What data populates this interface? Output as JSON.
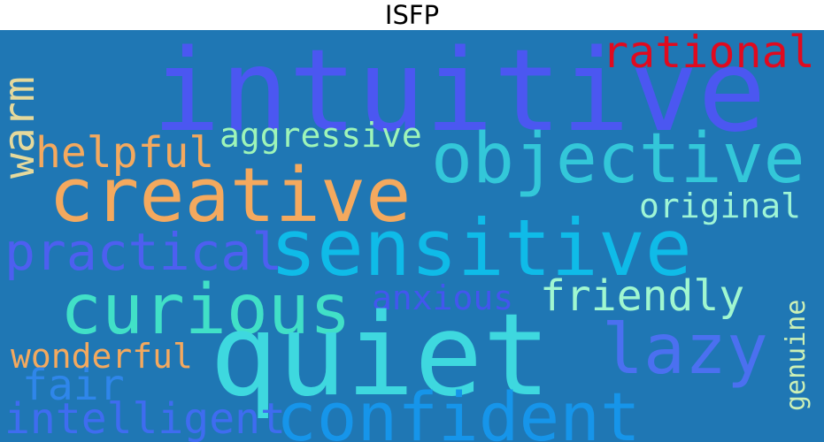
{
  "title": "ISFP",
  "background_color": "#1f77b4",
  "words": [
    {
      "text": "intuitive",
      "color": "#4b57f1"
    },
    {
      "text": "rational",
      "color": "#e00a1f"
    },
    {
      "text": "warm",
      "color": "#e5d99c"
    },
    {
      "text": "helpful",
      "color": "#f4a95e"
    },
    {
      "text": "aggressive",
      "color": "#9ef5b8"
    },
    {
      "text": "objective",
      "color": "#33c7d9"
    },
    {
      "text": "creative",
      "color": "#f4a95e"
    },
    {
      "text": "original",
      "color": "#9ef5d6"
    },
    {
      "text": "practical",
      "color": "#4d5ff0"
    },
    {
      "text": "sensitive",
      "color": "#0fbbe8"
    },
    {
      "text": "curious",
      "color": "#41e0c7"
    },
    {
      "text": "anxious",
      "color": "#4356ee"
    },
    {
      "text": "friendly",
      "color": "#a0f7d0"
    },
    {
      "text": "genuine",
      "color": "#ccf0b6"
    },
    {
      "text": "wonderful",
      "color": "#f4a95e"
    },
    {
      "text": "quiet",
      "color": "#3ed8df"
    },
    {
      "text": "lazy",
      "color": "#4b70f0"
    },
    {
      "text": "fair",
      "color": "#2f86ea"
    },
    {
      "text": "intelligent",
      "color": "#3f6cf0"
    },
    {
      "text": "confident",
      "color": "#1695ea"
    }
  ]
}
